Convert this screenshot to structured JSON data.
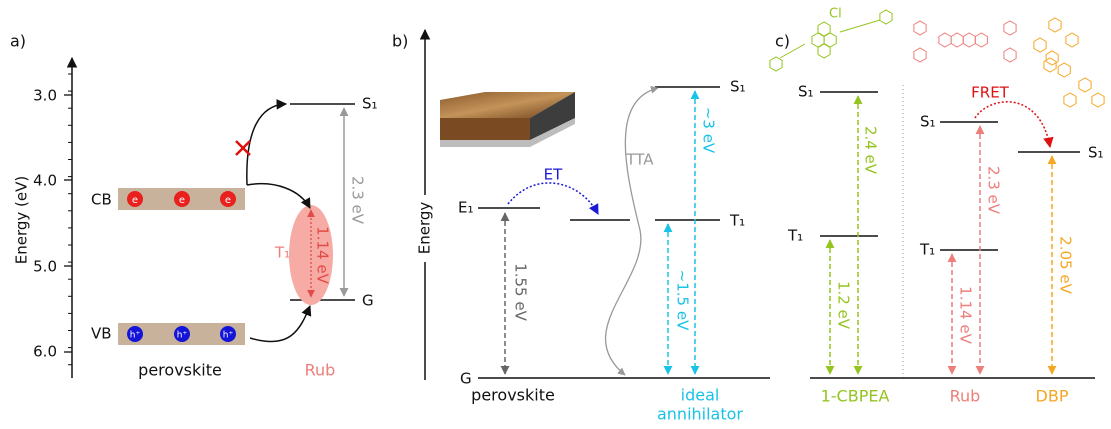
{
  "panel_a": {
    "label": "a)",
    "axis_title": "Energy (eV)",
    "ticks": [
      "3.0",
      "4.0",
      "5.0",
      "6.0"
    ],
    "cb": "CB",
    "vb": "VB",
    "electrons": [
      "e",
      "e",
      "e"
    ],
    "holes": [
      "h⁺",
      "h⁺",
      "h⁺"
    ],
    "s1": "S₁",
    "g": "G",
    "t1": "T₁",
    "gap_s1": "2.3 eV",
    "gap_t1": "1.14 eV",
    "material": "perovskite",
    "annihilator": "Rub"
  },
  "panel_b": {
    "label": "b)",
    "axis_title": "Energy",
    "s1": "S₁",
    "t1": "T₁",
    "e1": "E₁",
    "g": "G",
    "et": "ET",
    "tta": "TTA",
    "gap_s1": "~3 eV",
    "gap_t1": "~1.5 eV",
    "gap_e1": "1.55 eV",
    "material": "perovskite",
    "annihilator": [
      "ideal",
      "annihilator"
    ]
  },
  "panel_c": {
    "label": "c)",
    "substituent": "Cl",
    "fret": "FRET",
    "cbpea": {
      "s1": "S₁",
      "t1": "T₁",
      "gap_s1": "2.4 eV",
      "gap_t1": "1.2 eV",
      "name": "1-CBPEA"
    },
    "rub": {
      "s1": "S₁",
      "t1": "T₁",
      "gap_s1": "2.3 eV",
      "gap_t1": "1.14 eV",
      "name": "Rub"
    },
    "dbp": {
      "s1": "S₁",
      "gap_s1": "2.05 eV",
      "name": "DBP"
    }
  }
}
